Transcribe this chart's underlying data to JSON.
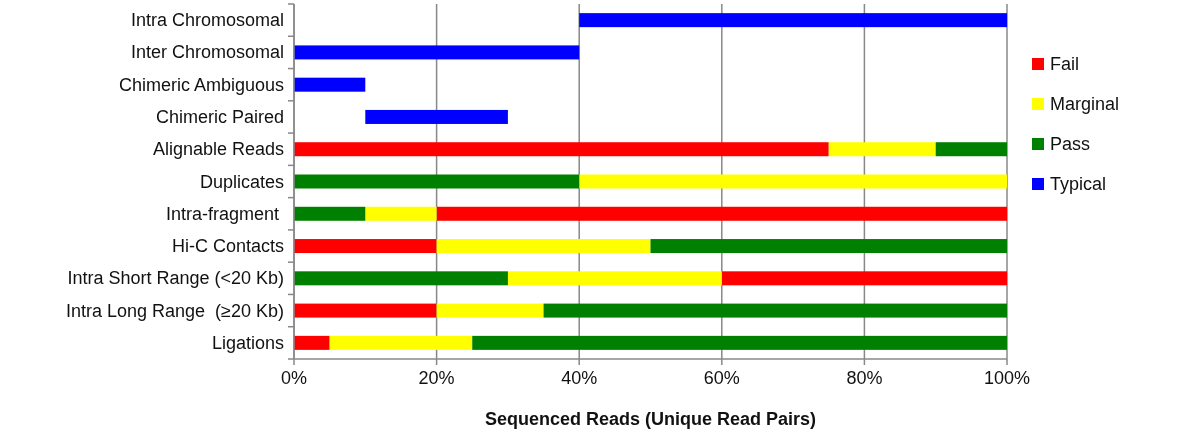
{
  "chart_data": {
    "type": "bar",
    "orientation": "horizontal",
    "xlabel": "Sequenced Reads (Unique Read Pairs)",
    "categories": [
      "Intra Chromosomal",
      "Inter Chromosomal",
      "Chimeric Ambiguous",
      "Chimeric Paired",
      "Alignable Reads",
      "Duplicates",
      "Intra-fragment ",
      "Hi-C Contacts",
      "Intra Short Range (<20 Kb)",
      "Intra Long Range  (≥20 Kb)",
      "Ligations"
    ],
    "series": [
      {
        "name": "Fail",
        "color": "#ff0000",
        "base": [
          null,
          null,
          null,
          null,
          0,
          null,
          20,
          0,
          60,
          0,
          0
        ],
        "values": [
          null,
          null,
          null,
          null,
          75,
          null,
          80,
          20,
          40,
          20,
          5
        ]
      },
      {
        "name": "Marginal",
        "color": "#ffff00",
        "base": [
          null,
          null,
          null,
          null,
          75,
          40,
          10,
          20,
          30,
          20,
          5
        ],
        "values": [
          null,
          null,
          null,
          null,
          15,
          60,
          10,
          30,
          30,
          15,
          20
        ]
      },
      {
        "name": "Pass",
        "color": "#008000",
        "base": [
          null,
          null,
          null,
          null,
          90,
          0,
          0,
          50,
          0,
          35,
          25
        ],
        "values": [
          null,
          null,
          null,
          null,
          10,
          40,
          10,
          50,
          30,
          65,
          75
        ]
      },
      {
        "name": "Typical",
        "color": "#0000ff",
        "base": [
          40,
          0,
          0,
          10,
          null,
          null,
          null,
          null,
          null,
          null,
          null
        ],
        "values": [
          60,
          40,
          10,
          20,
          null,
          null,
          null,
          null,
          null,
          null,
          null
        ]
      }
    ],
    "xlim": [
      0,
      100
    ],
    "xticks": [
      {
        "value": 0,
        "label": "0%"
      },
      {
        "value": 20,
        "label": "20%"
      },
      {
        "value": 40,
        "label": "40%"
      },
      {
        "value": 60,
        "label": "60%"
      },
      {
        "value": 80,
        "label": "80%"
      },
      {
        "value": 100,
        "label": "100%"
      }
    ],
    "grid": "x",
    "legend": "right"
  }
}
